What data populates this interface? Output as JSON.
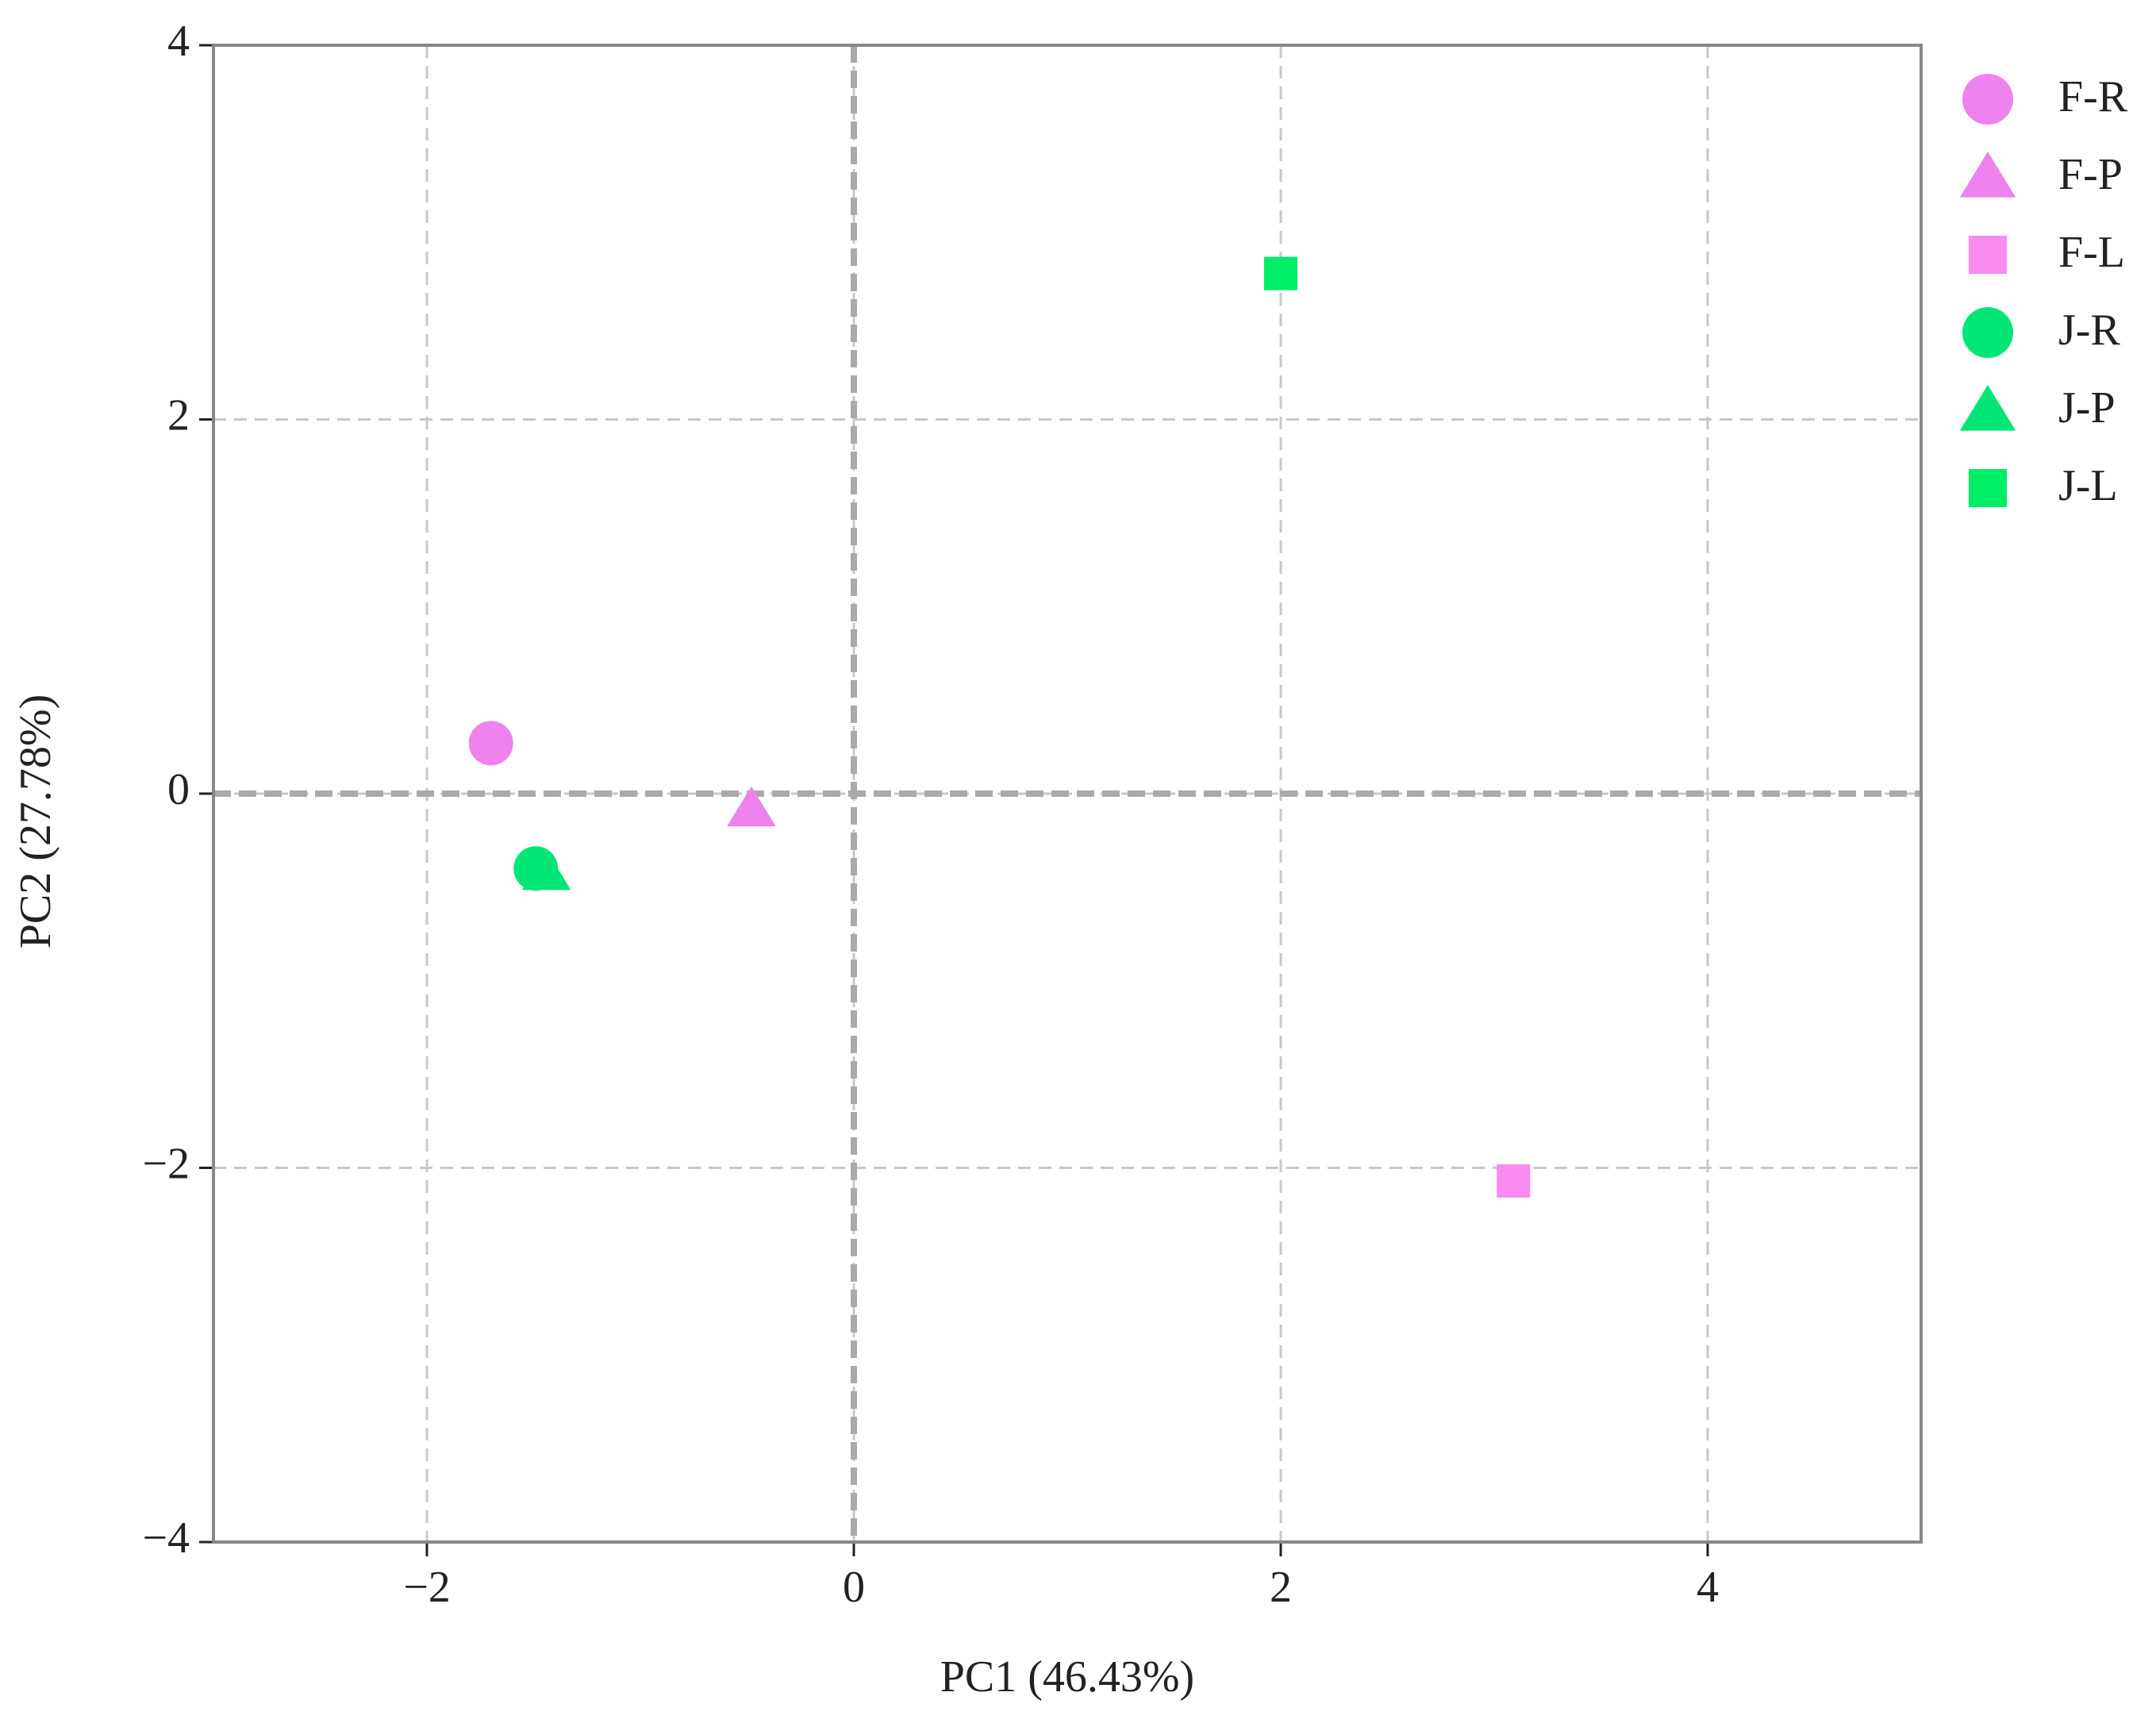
{
  "chart_data": {
    "type": "scatter",
    "xlabel": "PC1 (46.43%)",
    "ylabel": "PC2 (27.78%)",
    "xlim": [
      -3,
      5
    ],
    "ylim": [
      -4,
      4
    ],
    "xticks": [
      {
        "value": -2,
        "label": "−2"
      },
      0,
      2,
      4
    ],
    "yticks": [
      {
        "value": -4,
        "label": "−4"
      },
      {
        "value": -2,
        "label": "−2"
      },
      0,
      2,
      4
    ],
    "grid": true,
    "zero_lines": true,
    "legend": "outside right",
    "series": [
      {
        "name": "F-R",
        "color": "#ee82ee",
        "marker": "circle",
        "x": [
          -1.7
        ],
        "values": [
          0.27
        ]
      },
      {
        "name": "F-P",
        "color": "#ee82ee",
        "marker": "triangle",
        "x": [
          -0.48
        ],
        "values": [
          -0.08
        ]
      },
      {
        "name": "F-L",
        "color": "#f98cf0",
        "marker": "square",
        "x": [
          3.09
        ],
        "values": [
          -2.07
        ]
      },
      {
        "name": "J-R",
        "color": "#00e676",
        "marker": "circle",
        "x": [
          -1.49
        ],
        "values": [
          -0.4
        ]
      },
      {
        "name": "J-P",
        "color": "#00e676",
        "marker": "triangle",
        "x": [
          -1.44
        ],
        "values": [
          -0.42
        ]
      },
      {
        "name": "J-L",
        "color": "#00ee66",
        "marker": "square",
        "x": [
          2.0
        ],
        "values": [
          2.78
        ]
      }
    ]
  }
}
